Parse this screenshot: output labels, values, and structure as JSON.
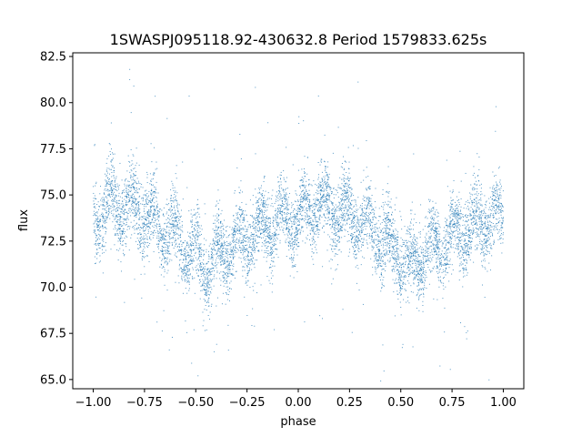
{
  "chart_data": {
    "type": "scatter",
    "title": "1SWASPJ095118.92-430632.8 Period 1579833.625s",
    "xlabel": "phase",
    "ylabel": "flux",
    "xlim": [
      -1.1,
      1.1
    ],
    "ylim": [
      64.5,
      82.7
    ],
    "x_ticks": [
      -1.0,
      -0.75,
      -0.5,
      -0.25,
      0.0,
      0.25,
      0.5,
      0.75,
      1.0
    ],
    "x_tick_labels": [
      "−1.00",
      "−0.75",
      "−0.50",
      "−0.25",
      "0.00",
      "0.25",
      "0.50",
      "0.75",
      "1.00"
    ],
    "y_ticks": [
      65.0,
      67.5,
      70.0,
      72.5,
      75.0,
      77.5,
      80.0,
      82.5
    ],
    "y_tick_labels": [
      "65.0",
      "67.5",
      "70.0",
      "72.5",
      "75.0",
      "77.5",
      "80.0",
      "82.5"
    ],
    "grid": false,
    "marker_color": "#1f77b4",
    "phase_profile": {
      "x": [
        -1.0,
        -0.9,
        -0.8,
        -0.7,
        -0.6,
        -0.5,
        -0.45,
        -0.4,
        -0.3,
        -0.2,
        -0.1,
        0.0,
        0.1,
        0.2,
        0.3,
        0.4,
        0.5,
        0.55,
        0.6,
        0.7,
        0.8,
        0.9,
        1.0
      ],
      "mean_flux": [
        73.8,
        74.5,
        74.2,
        73.6,
        72.8,
        71.6,
        71.0,
        71.8,
        72.3,
        73.0,
        73.6,
        73.8,
        74.5,
        74.2,
        73.6,
        72.8,
        71.6,
        71.0,
        71.8,
        72.3,
        73.0,
        73.6,
        73.8
      ]
    }
  }
}
